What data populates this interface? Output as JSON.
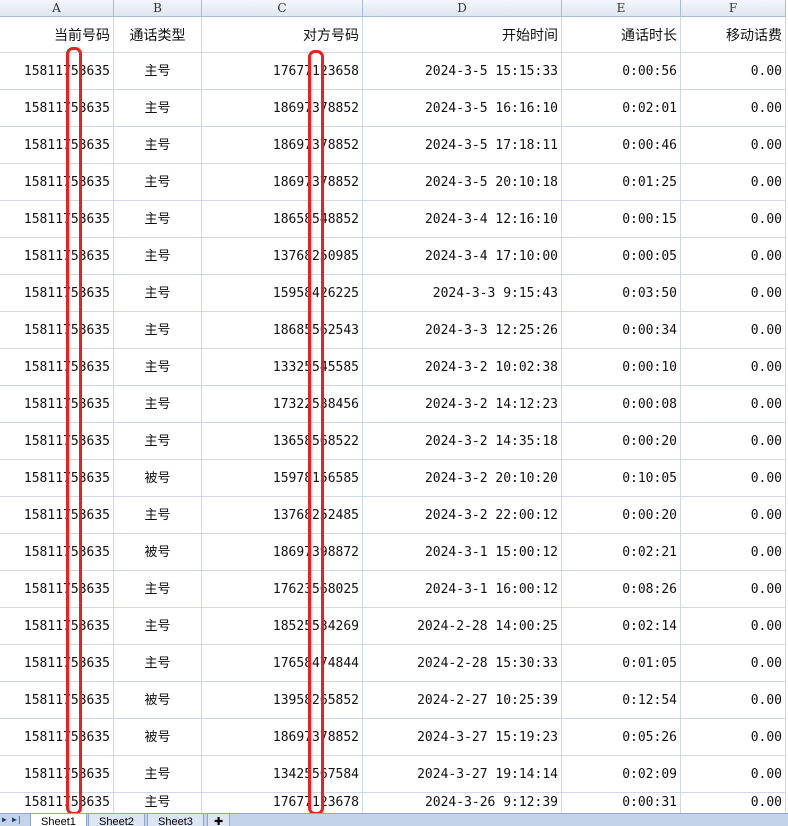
{
  "columns": [
    "A",
    "B",
    "C",
    "D",
    "E",
    "F"
  ],
  "header": [
    "当前号码",
    "通话类型",
    "对方号码",
    "开始时间",
    "通话时长",
    "移动话费"
  ],
  "rows": [
    [
      "15811753635",
      "主号",
      "17677123658",
      "2024-3-5 15:15:33",
      "0:00:56",
      "0.00"
    ],
    [
      "15811753635",
      "主号",
      "18697378852",
      "2024-3-5 16:16:10",
      "0:02:01",
      "0.00"
    ],
    [
      "15811753635",
      "主号",
      "18697378852",
      "2024-3-5 17:18:11",
      "0:00:46",
      "0.00"
    ],
    [
      "15811753635",
      "主号",
      "18697378852",
      "2024-3-5 20:10:18",
      "0:01:25",
      "0.00"
    ],
    [
      "15811753635",
      "主号",
      "18658548852",
      "2024-3-4 12:16:10",
      "0:00:15",
      "0.00"
    ],
    [
      "15811753635",
      "主号",
      "13768250985",
      "2024-3-4 17:10:00",
      "0:00:05",
      "0.00"
    ],
    [
      "15811753635",
      "主号",
      "15958426225",
      "2024-3-3 9:15:43",
      "0:03:50",
      "0.00"
    ],
    [
      "15811753635",
      "主号",
      "18685562543",
      "2024-3-3 12:25:26",
      "0:00:34",
      "0.00"
    ],
    [
      "15811753635",
      "主号",
      "13325545585",
      "2024-3-2 10:02:38",
      "0:00:10",
      "0.00"
    ],
    [
      "15811753635",
      "主号",
      "17322538456",
      "2024-3-2 14:12:23",
      "0:00:08",
      "0.00"
    ],
    [
      "15811753635",
      "主号",
      "13658568522",
      "2024-3-2 14:35:18",
      "0:00:20",
      "0.00"
    ],
    [
      "15811753635",
      "被号",
      "15978156585",
      "2024-3-2 20:10:20",
      "0:10:05",
      "0.00"
    ],
    [
      "15811753635",
      "主号",
      "13768252485",
      "2024-3-2 22:00:12",
      "0:00:20",
      "0.00"
    ],
    [
      "15811753635",
      "被号",
      "18697398872",
      "2024-3-1 15:00:12",
      "0:02:21",
      "0.00"
    ],
    [
      "15811753635",
      "主号",
      "17623568025",
      "2024-3-1 16:00:12",
      "0:08:26",
      "0.00"
    ],
    [
      "15811753635",
      "主号",
      "18525534269",
      "2024-2-28 14:00:25",
      "0:02:14",
      "0.00"
    ],
    [
      "15811753635",
      "主号",
      "17658474844",
      "2024-2-28 15:30:33",
      "0:01:05",
      "0.00"
    ],
    [
      "15811753635",
      "被号",
      "13958265852",
      "2024-2-27 10:25:39",
      "0:12:54",
      "0.00"
    ],
    [
      "15811753635",
      "被号",
      "18697378852",
      "2024-3-27 15:19:23",
      "0:05:26",
      "0.00"
    ],
    [
      "15811753635",
      "主号",
      "13425567584",
      "2024-3-27 19:14:14",
      "0:02:09",
      "0.00"
    ],
    [
      "15811753635",
      "主号",
      "17677123678",
      "2024-3-26 9:12:39",
      "0:00:31",
      "0.00"
    ]
  ],
  "sheet_tabs": [
    "Sheet1",
    "Sheet2",
    "Sheet3"
  ],
  "active_sheet": "Sheet1",
  "colors": {
    "redaction": "#f01e1e",
    "header_bg": "#dde6f2",
    "grid": "#d0d7e5"
  }
}
